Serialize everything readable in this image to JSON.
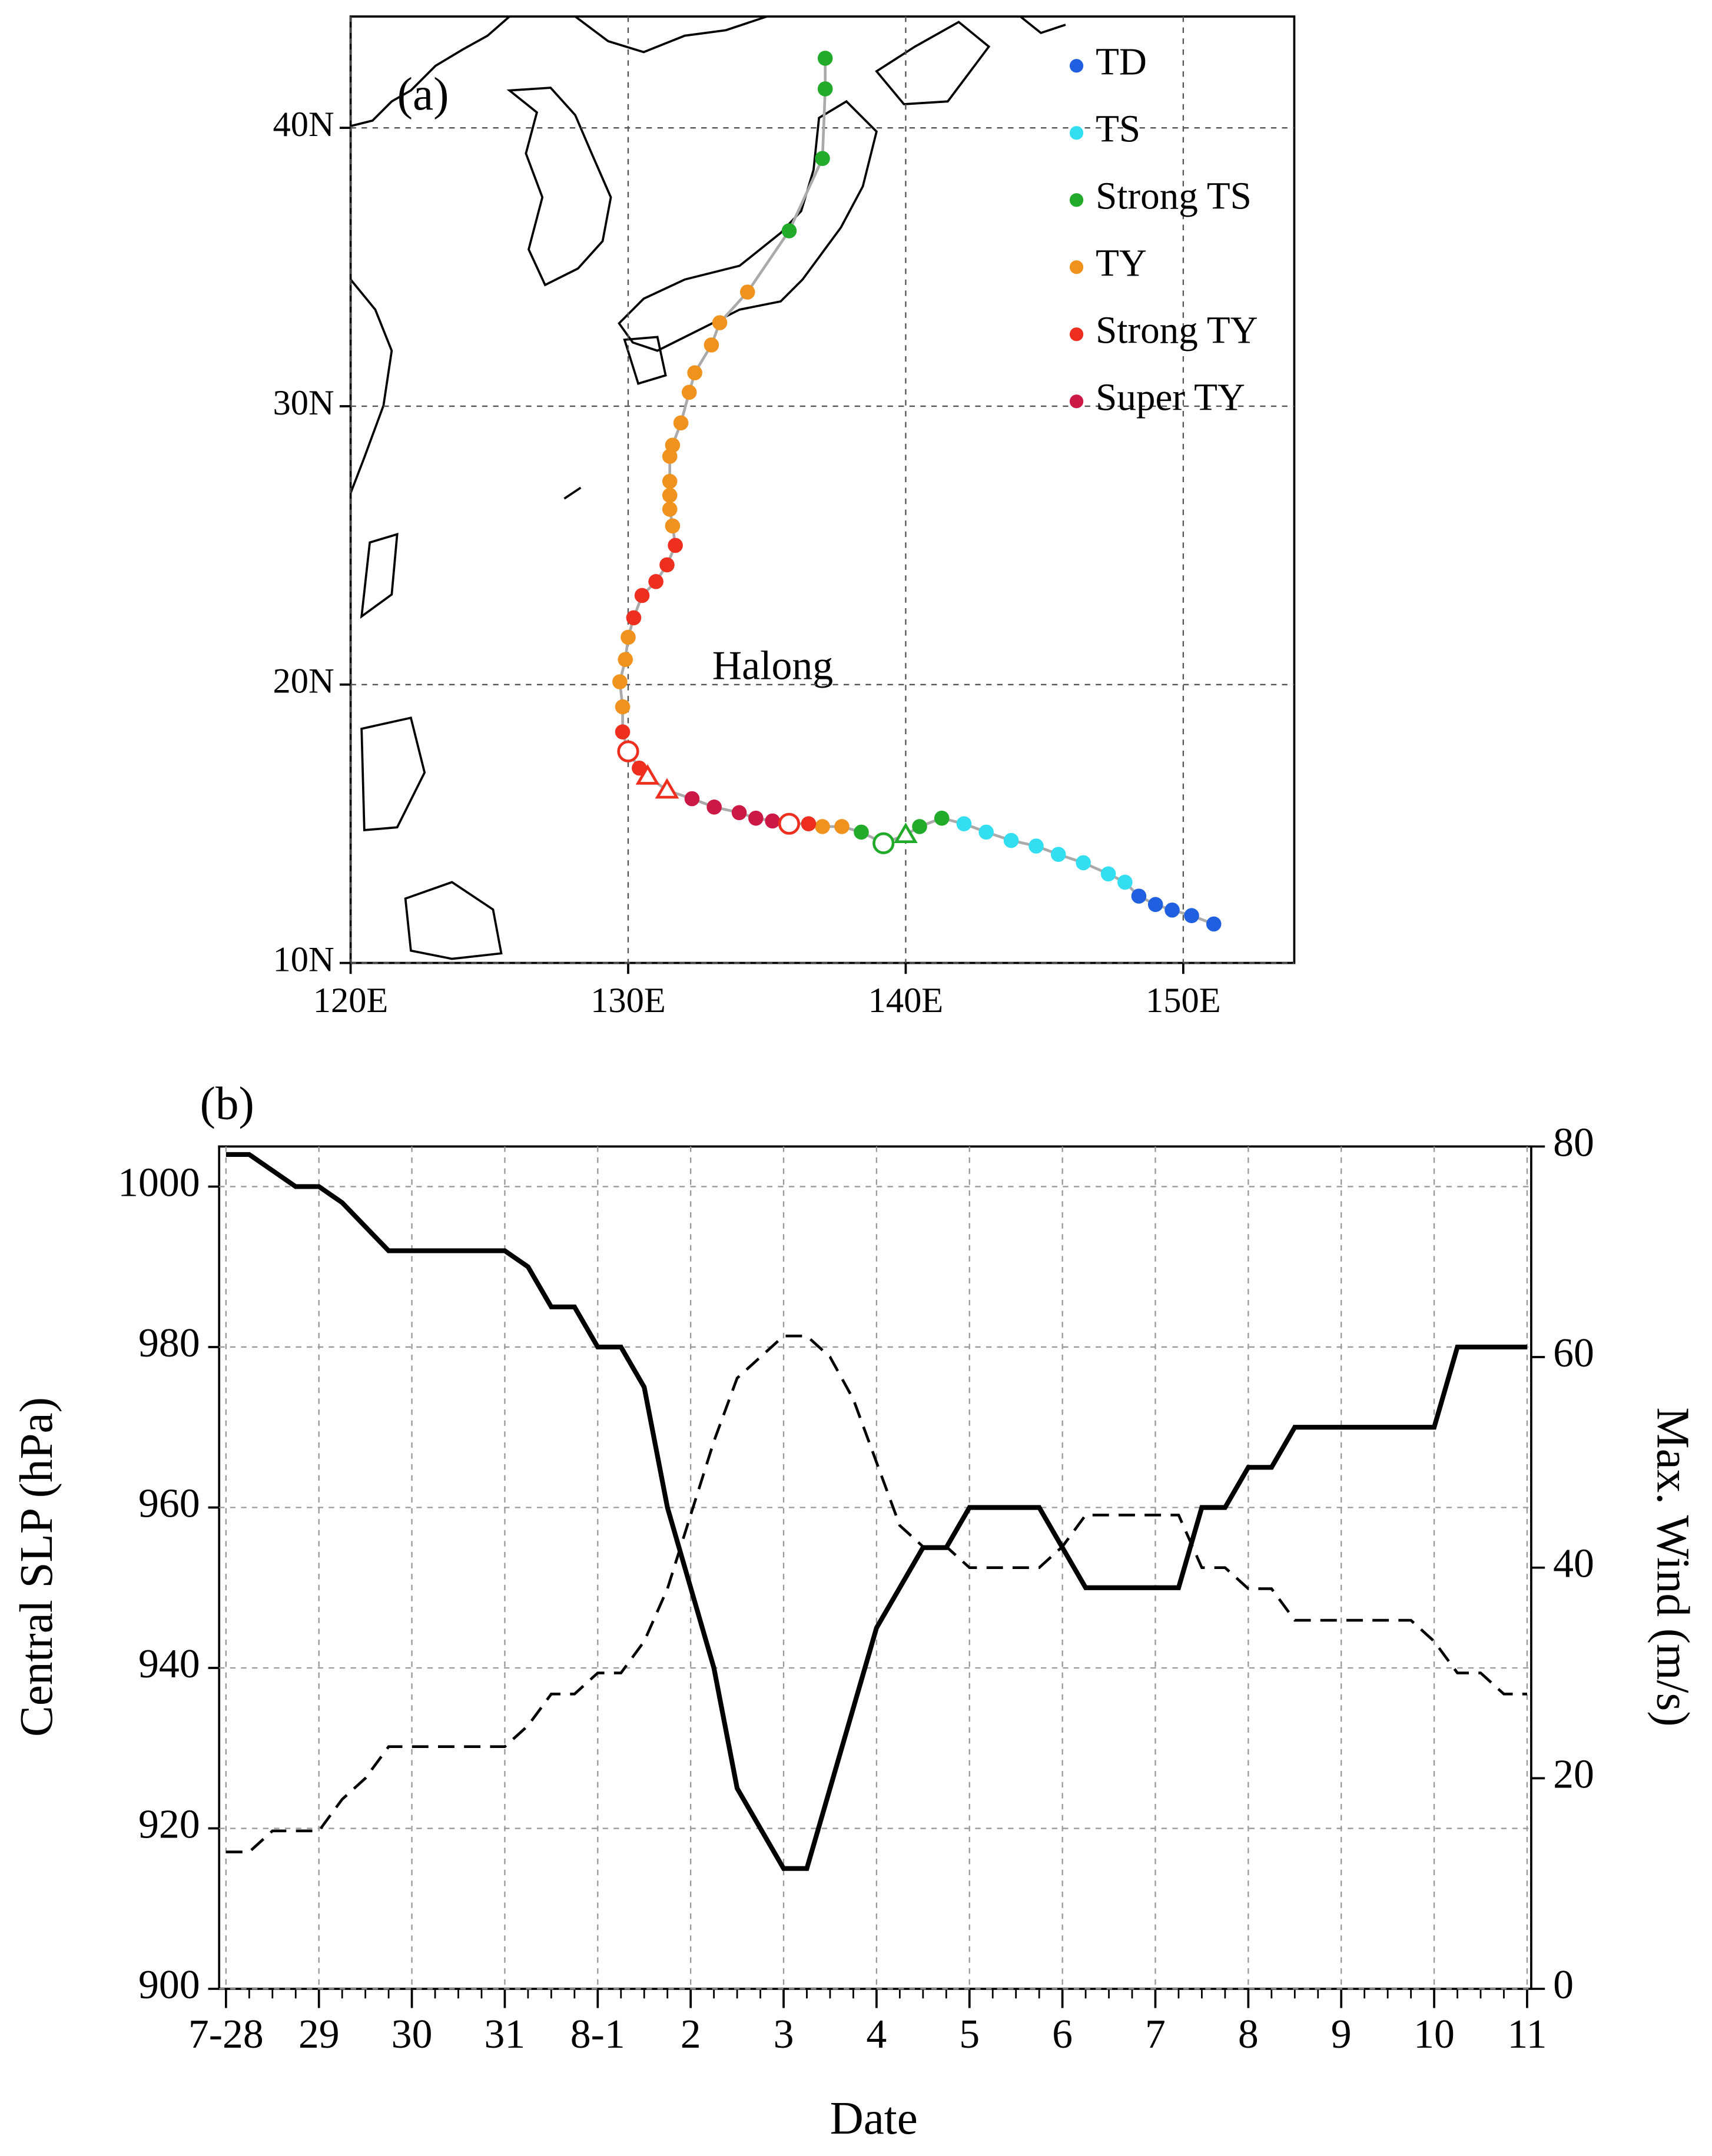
{
  "chart_data": [
    {
      "type": "scatter",
      "xlim": [
        120,
        154
      ],
      "ylim": [
        10,
        44
      ],
      "xticks": [
        {
          "value": 120,
          "label": "120E"
        },
        {
          "value": 130,
          "label": "130E"
        },
        {
          "value": 140,
          "label": "140E"
        },
        {
          "value": 150,
          "label": "150E"
        }
      ],
      "yticks": [
        {
          "value": 10,
          "label": "10N"
        },
        {
          "value": 20,
          "label": "20N"
        },
        {
          "value": 30,
          "label": "30N"
        },
        {
          "value": 40,
          "label": "40N"
        }
      ],
      "grid": true,
      "legend": "upper right",
      "annotations": [
        "(a)",
        "Halong"
      ],
      "track": {
        "color": "#aaaaaa",
        "x": [
          151.1,
          150.3,
          149.6,
          149.0,
          148.4,
          147.9,
          147.3,
          146.4,
          145.5,
          144.7,
          143.8,
          142.9,
          142.1,
          141.3,
          140.5,
          140.0,
          139.2,
          138.4,
          137.7,
          137.0,
          136.5,
          135.8,
          135.2,
          134.6,
          134.0,
          133.1,
          132.3,
          131.4,
          130.7,
          130.4,
          130.0,
          129.8,
          129.8,
          129.7,
          129.9,
          130.0,
          130.2,
          130.5,
          131.0,
          131.4,
          131.7,
          131.6,
          131.5,
          131.5,
          131.5,
          131.5,
          131.6,
          131.9,
          132.2,
          132.4,
          133.0,
          133.3,
          134.3,
          135.8,
          137.0,
          137.1,
          137.1
        ],
        "y": [
          11.4,
          11.7,
          11.9,
          12.1,
          12.4,
          12.9,
          13.2,
          13.6,
          13.9,
          14.2,
          14.4,
          14.7,
          15.0,
          15.2,
          14.9,
          14.6,
          14.3,
          14.7,
          14.9,
          14.9,
          15.0,
          15.0,
          15.1,
          15.2,
          15.4,
          15.6,
          15.9,
          16.2,
          16.7,
          17.0,
          17.6,
          18.3,
          19.2,
          20.1,
          20.9,
          21.7,
          22.4,
          23.2,
          23.7,
          24.3,
          25.0,
          25.7,
          26.3,
          26.8,
          27.3,
          28.2,
          28.6,
          29.4,
          30.5,
          31.2,
          32.2,
          33.0,
          34.1,
          36.3,
          38.9,
          41.4,
          42.5
        ]
      },
      "series": [
        {
          "name": "TD",
          "color": "#1f5fe0",
          "x": [
            151.1,
            150.3,
            149.6,
            149.0,
            148.4
          ],
          "values": [
            11.4,
            11.7,
            11.9,
            12.1,
            12.4
          ]
        },
        {
          "name": "TS",
          "color": "#33def0",
          "x": [
            147.9,
            147.3,
            146.4,
            145.5,
            144.7,
            143.8,
            142.9,
            142.1
          ],
          "values": [
            12.9,
            13.2,
            13.6,
            13.9,
            14.2,
            14.4,
            14.7,
            15.0
          ]
        },
        {
          "name": "Strong TS",
          "color": "#22aa2a",
          "x": [
            141.3,
            140.5,
            138.4,
            135.8,
            137.0,
            137.1,
            137.1
          ],
          "values": [
            15.2,
            14.9,
            14.7,
            36.3,
            38.9,
            41.4,
            42.5
          ]
        },
        {
          "name": "TY",
          "color": "#f0921e",
          "x": [
            137.7,
            137.0,
            134.3,
            133.3,
            133.0,
            132.4,
            132.2,
            131.9,
            131.6,
            131.5,
            131.5,
            131.5,
            131.5,
            131.6,
            130.0,
            129.9,
            129.7,
            129.8
          ],
          "values": [
            14.9,
            14.9,
            34.1,
            33.0,
            32.2,
            31.2,
            30.5,
            29.4,
            28.6,
            28.2,
            27.3,
            26.8,
            26.3,
            25.7,
            21.7,
            20.9,
            20.1,
            19.2
          ]
        },
        {
          "name": "Strong TY",
          "color": "#ee2e1e",
          "x": [
            136.5,
            131.7,
            131.4,
            131.0,
            130.5,
            130.2,
            129.8,
            130.4
          ],
          "values": [
            15.0,
            25.0,
            24.3,
            23.7,
            23.2,
            22.4,
            18.3,
            17.0
          ]
        },
        {
          "name": "Super TY",
          "color": "#cc1844",
          "x": [
            135.2,
            134.6,
            134.0,
            133.1,
            132.3
          ],
          "values": [
            15.1,
            15.2,
            15.4,
            15.6,
            15.9
          ]
        }
      ],
      "markers": [
        {
          "shape": "circle",
          "color": "#ee2e1e",
          "x": 130.0,
          "y": 17.6
        },
        {
          "shape": "triangle",
          "color": "#ee2e1e",
          "x": 130.7,
          "y": 16.7
        },
        {
          "shape": "triangle",
          "color": "#ee2e1e",
          "x": 131.4,
          "y": 16.2
        },
        {
          "shape": "circle",
          "color": "#ee2e1e",
          "x": 135.8,
          "y": 15.0
        },
        {
          "shape": "circle",
          "color": "#22aa2a",
          "x": 139.2,
          "y": 14.3
        },
        {
          "shape": "triangle",
          "color": "#22aa2a",
          "x": 140.0,
          "y": 14.6
        }
      ]
    },
    {
      "type": "line",
      "annotation": "(b)",
      "xlabel": "Date",
      "ylabel": "Central SLP (hPa)",
      "y2label": "Max. Wind (m/s)",
      "categories": [
        "7-28",
        null,
        null,
        null,
        "29",
        null,
        null,
        null,
        "30",
        null,
        null,
        null,
        "31",
        null,
        null,
        null,
        "8-1",
        null,
        null,
        null,
        "2",
        null,
        null,
        null,
        "3",
        null,
        null,
        null,
        "4",
        null,
        null,
        null,
        "5",
        null,
        null,
        null,
        "6",
        null,
        null,
        null,
        "7",
        null,
        null,
        null,
        "8",
        null,
        null,
        null,
        "9",
        null,
        null,
        null,
        "10",
        null,
        null,
        null,
        "11"
      ],
      "ylim": [
        900,
        1005
      ],
      "yticks": [
        900,
        920,
        940,
        960,
        980,
        1000
      ],
      "y2lim": [
        0,
        80
      ],
      "y2ticks": [
        0,
        20,
        40,
        60,
        80
      ],
      "grid": true,
      "series": [
        {
          "color": "#000000",
          "linestyle": "solid",
          "axis": "y",
          "values": [
            1004,
            1004,
            1002,
            1000,
            1000,
            998,
            995,
            992,
            992,
            992,
            992,
            992,
            992,
            990,
            985,
            985,
            980,
            980,
            975,
            960,
            950,
            940,
            925,
            920,
            915,
            915,
            925,
            935,
            945,
            950,
            955,
            955,
            960,
            960,
            960,
            960,
            955,
            950,
            950,
            950,
            950,
            950,
            960,
            960,
            965,
            965,
            970,
            970,
            970,
            970,
            970,
            970,
            970,
            980,
            980,
            980,
            980
          ]
        },
        {
          "color": "#000000",
          "linestyle": "dashed",
          "axis": "y2",
          "values": [
            13,
            13,
            15,
            15,
            15,
            18,
            20,
            23,
            23,
            23,
            23,
            23,
            23,
            25,
            28,
            28,
            30,
            30,
            33,
            38,
            45,
            52,
            58,
            60,
            62,
            62,
            60,
            56,
            50,
            44,
            42,
            42,
            40,
            40,
            40,
            40,
            42,
            45,
            45,
            45,
            45,
            45,
            40,
            40,
            38,
            38,
            35,
            35,
            35,
            35,
            35,
            35,
            33,
            30,
            30,
            28,
            28
          ]
        }
      ]
    }
  ]
}
